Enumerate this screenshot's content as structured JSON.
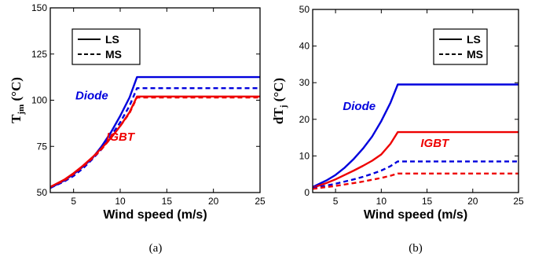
{
  "chart_data": [
    {
      "type": "line",
      "caption": "(a)",
      "xlabel": "Wind speed (m/s)",
      "ylabel_main": "T",
      "ylabel_sub": "jm",
      "ylabel_unit": " (°C)",
      "xlim": [
        2.5,
        25
      ],
      "ylim": [
        50,
        150
      ],
      "xticks": [
        5,
        10,
        15,
        20,
        25
      ],
      "yticks": [
        50,
        75,
        100,
        125,
        150
      ],
      "grid": false,
      "legend": {
        "position": "top-left",
        "entries": [
          {
            "label": "LS",
            "style": "solid"
          },
          {
            "label": "MS",
            "style": "dashed"
          }
        ]
      },
      "annotations": [
        {
          "text": "Diode",
          "color": "#0000dd",
          "x": 5.2,
          "y": 100.5
        },
        {
          "text": "IGBT",
          "color": "#ee0000",
          "x": 8.5,
          "y": 78
        }
      ],
      "series": [
        {
          "device": "Diode",
          "case": "LS",
          "style": "solid",
          "color": "#0000dd",
          "x": [
            2.5,
            4,
            5,
            6,
            7,
            8,
            9,
            10,
            11,
            11.8,
            25
          ],
          "y": [
            52.5,
            56.5,
            60,
            64,
            68.5,
            75,
            82.5,
            91.5,
            101.5,
            112.5,
            112.5
          ]
        },
        {
          "device": "Diode",
          "case": "MS",
          "style": "dashed",
          "color": "#0000dd",
          "x": [
            2.5,
            4,
            5,
            6,
            7,
            8,
            9,
            10,
            11,
            11.8,
            25
          ],
          "y": [
            52.5,
            56,
            59,
            63,
            68,
            73.5,
            80.5,
            88,
            97,
            106.5,
            106.5
          ]
        },
        {
          "device": "IGBT",
          "case": "LS",
          "style": "solid",
          "color": "#ee0000",
          "x": [
            2.5,
            4,
            5,
            6,
            7,
            8,
            9,
            10,
            11,
            11.8,
            25
          ],
          "y": [
            53,
            57,
            60.5,
            64.5,
            69,
            74,
            79.5,
            86,
            93.5,
            102,
            102
          ]
        },
        {
          "device": "IGBT",
          "case": "MS",
          "style": "dashed",
          "color": "#ee0000",
          "x": [
            2.5,
            4,
            5,
            6,
            7,
            8,
            9,
            10,
            11,
            11.8,
            25
          ],
          "y": [
            53,
            56.5,
            60,
            64,
            68.5,
            73.5,
            79.5,
            86,
            93,
            101.5,
            101.5
          ]
        }
      ]
    },
    {
      "type": "line",
      "caption": "(b)",
      "xlabel": "Wind speed (m/s)",
      "ylabel_main": "dT",
      "ylabel_sub": "j",
      "ylabel_unit": " (°C)",
      "xlim": [
        2.5,
        25
      ],
      "ylim": [
        0,
        50
      ],
      "xticks": [
        5,
        10,
        15,
        20,
        25
      ],
      "yticks": [
        0,
        10,
        20,
        30,
        40,
        50
      ],
      "grid": false,
      "legend": {
        "position": "top-right",
        "entries": [
          {
            "label": "LS",
            "style": "solid"
          },
          {
            "label": "MS",
            "style": "dashed"
          }
        ]
      },
      "annotations": [
        {
          "text": "Diode",
          "color": "#0000dd",
          "x": 5.8,
          "y": 22.5
        },
        {
          "text": "IGBT",
          "color": "#ee0000",
          "x": 14.3,
          "y": 12.5
        }
      ],
      "series": [
        {
          "device": "Diode",
          "case": "LS",
          "style": "solid",
          "color": "#0000dd",
          "x": [
            2.5,
            4,
            5,
            6,
            7,
            8,
            9,
            10,
            11,
            11.8,
            25
          ],
          "y": [
            1.5,
            3.3,
            4.8,
            6.8,
            9.2,
            12,
            15.3,
            19.5,
            24.5,
            29.5,
            29.5
          ]
        },
        {
          "device": "IGBT",
          "case": "LS",
          "style": "solid",
          "color": "#ee0000",
          "x": [
            2.5,
            4,
            5,
            6,
            7,
            8,
            9,
            10,
            11,
            11.8,
            25
          ],
          "y": [
            1.3,
            2.6,
            3.6,
            4.8,
            6,
            7.3,
            8.7,
            10.4,
            13.3,
            16.5,
            16.5
          ]
        },
        {
          "device": "Diode",
          "case": "MS",
          "style": "dashed",
          "color": "#0000dd",
          "x": [
            2.5,
            4,
            5,
            6,
            7,
            8,
            9,
            10,
            11,
            11.8,
            25
          ],
          "y": [
            1.2,
            1.9,
            2.4,
            3,
            3.6,
            4.3,
            5.1,
            6,
            7.2,
            8.5,
            8.5
          ]
        },
        {
          "device": "IGBT",
          "case": "MS",
          "style": "dashed",
          "color": "#ee0000",
          "x": [
            2.5,
            4,
            5,
            6,
            7,
            8,
            9,
            10,
            11,
            11.8,
            25
          ],
          "y": [
            1.0,
            1.5,
            1.8,
            2.2,
            2.6,
            3.0,
            3.5,
            4.0,
            4.6,
            5.2,
            5.2
          ]
        }
      ]
    }
  ]
}
